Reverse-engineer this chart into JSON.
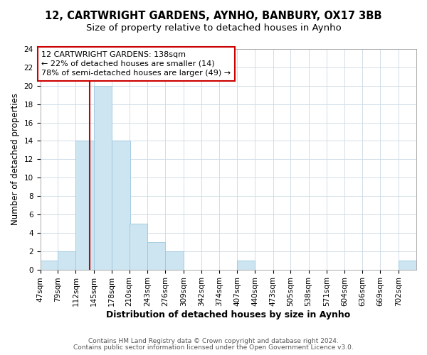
{
  "title": "12, CARTWRIGHT GARDENS, AYNHO, BANBURY, OX17 3BB",
  "subtitle": "Size of property relative to detached houses in Aynho",
  "xlabel": "Distribution of detached houses by size in Aynho",
  "ylabel": "Number of detached properties",
  "bin_edges": [
    47,
    79,
    112,
    145,
    178,
    210,
    243,
    276,
    309,
    342,
    374,
    407,
    440,
    473,
    505,
    538,
    571,
    604,
    636,
    669,
    702
  ],
  "bin_counts": [
    1,
    2,
    14,
    20,
    14,
    5,
    3,
    2,
    0,
    0,
    0,
    1,
    0,
    0,
    0,
    0,
    0,
    0,
    0,
    0,
    1
  ],
  "bin_width": 33,
  "bar_color": "#cce5f0",
  "bar_edge_color": "#9dc8de",
  "property_line_x": 138,
  "property_line_color": "#cc0000",
  "annotation_text": "12 CARTWRIGHT GARDENS: 138sqm\n← 22% of detached houses are smaller (14)\n78% of semi-detached houses are larger (49) →",
  "annotation_box_facecolor": "white",
  "annotation_box_edgecolor": "#cc0000",
  "ylim": [
    0,
    24
  ],
  "yticks": [
    0,
    2,
    4,
    6,
    8,
    10,
    12,
    14,
    16,
    18,
    20,
    22,
    24
  ],
  "footer_line1": "Contains HM Land Registry data © Crown copyright and database right 2024.",
  "footer_line2": "Contains public sector information licensed under the Open Government Licence v3.0.",
  "background_color": "white",
  "plot_background_color": "white",
  "grid_color": "#d0dde8",
  "title_fontsize": 10.5,
  "subtitle_fontsize": 9.5,
  "xlabel_fontsize": 9,
  "ylabel_fontsize": 8.5,
  "tick_fontsize": 7.5,
  "annot_fontsize": 8,
  "footer_fontsize": 6.5
}
